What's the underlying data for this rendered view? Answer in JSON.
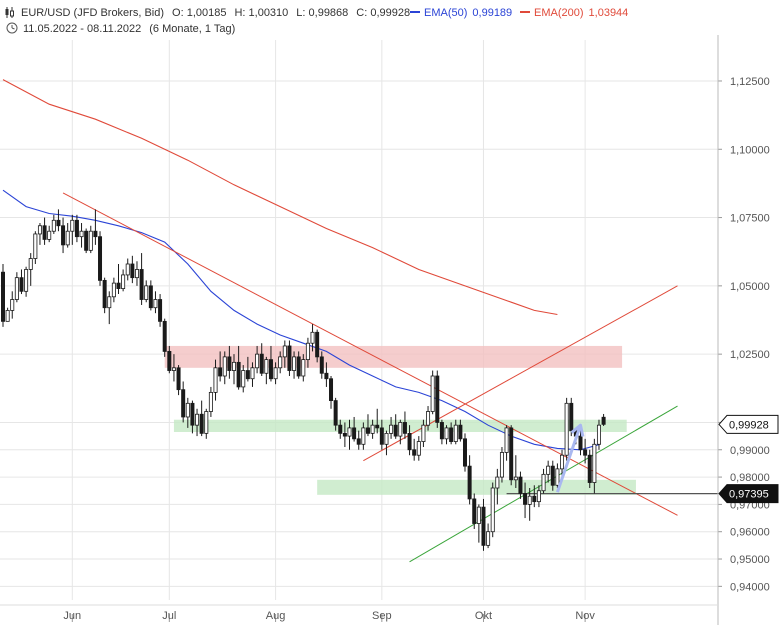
{
  "header": {
    "symbol": "EUR/USD (JFD Brokers, Bid)",
    "open": "O: 1,00185",
    "high": "H: 1,00310",
    "low": "L: 0,99868",
    "close": "C: 0,99928",
    "ema50_label": "EMA(50)",
    "ema50_value": "0,99189",
    "ema200_label": "EMA(200)",
    "ema200_value": "1,03944",
    "range": "11.05.2022 - 08.11.2022",
    "period": "(6 Monate, 1 Tag)"
  },
  "colors": {
    "up": "#1a1a1a",
    "down": "#1a1a1a",
    "ema50": "#2b44d6",
    "ema200": "#e04a3a",
    "trend_red": "#e04a3a",
    "trend_green": "#3aa53a",
    "zone_red": "#f2c0c0",
    "zone_green": "#c4e8c4",
    "arrow": "#a9b8f0",
    "grid": "#e6e6e6"
  },
  "price_tags": [
    {
      "label": "0,99928",
      "value": 0.99928,
      "style": "outline"
    },
    {
      "label": "0,97395",
      "value": 0.97395,
      "style": "filled"
    }
  ],
  "chart_data": {
    "type": "candlestick",
    "title": "",
    "ylim": [
      0.935,
      1.14
    ],
    "y_ticks": [
      0.94,
      0.95,
      0.96,
      0.97,
      0.98,
      0.99,
      1.0,
      1.025,
      1.05,
      1.075,
      1.1,
      1.125
    ],
    "y_tick_labels": [
      "0,94000",
      "0,95000",
      "0,96000",
      "0,97000",
      "0,98000",
      "0,99000",
      "1,00000",
      "1,02500",
      "1,05000",
      "1,07500",
      "1,10000",
      "1,12500"
    ],
    "x_ticks": [
      {
        "label": "Jun",
        "index": 15
      },
      {
        "label": "Jul",
        "index": 36
      },
      {
        "label": "Aug",
        "index": 59
      },
      {
        "label": "Sep",
        "index": 82
      },
      {
        "label": "Okt",
        "index": 104
      },
      {
        "label": "Nov",
        "index": 126
      }
    ],
    "candles_ohlc": [
      [
        1.055,
        1.058,
        1.035,
        1.037
      ],
      [
        1.037,
        1.042,
        1.037,
        1.041
      ],
      [
        1.041,
        1.048,
        1.038,
        1.045
      ],
      [
        1.045,
        1.055,
        1.044,
        1.053
      ],
      [
        1.053,
        1.056,
        1.047,
        1.048
      ],
      [
        1.048,
        1.057,
        1.046,
        1.056
      ],
      [
        1.056,
        1.062,
        1.05,
        1.06
      ],
      [
        1.06,
        1.07,
        1.058,
        1.069
      ],
      [
        1.069,
        1.073,
        1.065,
        1.072
      ],
      [
        1.072,
        1.075,
        1.065,
        1.067
      ],
      [
        1.067,
        1.072,
        1.066,
        1.07
      ],
      [
        1.07,
        1.076,
        1.069,
        1.074
      ],
      [
        1.074,
        1.078,
        1.07,
        1.072
      ],
      [
        1.072,
        1.075,
        1.062,
        1.065
      ],
      [
        1.065,
        1.073,
        1.064,
        1.07
      ],
      [
        1.07,
        1.076,
        1.065,
        1.074
      ],
      [
        1.074,
        1.076,
        1.066,
        1.068
      ],
      [
        1.068,
        1.073,
        1.064,
        1.07
      ],
      [
        1.07,
        1.071,
        1.062,
        1.063
      ],
      [
        1.063,
        1.072,
        1.062,
        1.07
      ],
      [
        1.07,
        1.078,
        1.065,
        1.068
      ],
      [
        1.068,
        1.07,
        1.05,
        1.052
      ],
      [
        1.052,
        1.053,
        1.04,
        1.042
      ],
      [
        1.042,
        1.048,
        1.036,
        1.046
      ],
      [
        1.046,
        1.053,
        1.044,
        1.051
      ],
      [
        1.051,
        1.058,
        1.047,
        1.049
      ],
      [
        1.049,
        1.056,
        1.048,
        1.054
      ],
      [
        1.054,
        1.06,
        1.052,
        1.058
      ],
      [
        1.058,
        1.061,
        1.051,
        1.053
      ],
      [
        1.053,
        1.059,
        1.05,
        1.056
      ],
      [
        1.056,
        1.062,
        1.043,
        1.045
      ],
      [
        1.045,
        1.052,
        1.044,
        1.05
      ],
      [
        1.05,
        1.052,
        1.041,
        1.042
      ],
      [
        1.042,
        1.048,
        1.04,
        1.045
      ],
      [
        1.045,
        1.047,
        1.035,
        1.037
      ],
      [
        1.037,
        1.038,
        1.024,
        1.026
      ],
      [
        1.026,
        1.028,
        1.018,
        1.019
      ],
      [
        1.019,
        1.025,
        1.015,
        1.02
      ],
      [
        1.02,
        1.021,
        1.01,
        1.012
      ],
      [
        1.012,
        1.015,
        1.0,
        1.002
      ],
      [
        1.002,
        1.009,
        0.998,
        1.007
      ],
      [
        1.007,
        1.008,
        0.996,
        0.999
      ],
      [
        0.999,
        1.005,
        0.995,
        1.003
      ],
      [
        1.003,
        1.008,
        0.995,
        0.996
      ],
      [
        0.996,
        1.005,
        0.994,
        1.004
      ],
      [
        1.004,
        1.013,
        1.002,
        1.011
      ],
      [
        1.011,
        1.023,
        1.008,
        1.02
      ],
      [
        1.02,
        1.026,
        1.015,
        1.017
      ],
      [
        1.017,
        1.026,
        1.014,
        1.024
      ],
      [
        1.024,
        1.028,
        1.016,
        1.019
      ],
      [
        1.019,
        1.025,
        1.014,
        1.022
      ],
      [
        1.022,
        1.028,
        1.012,
        1.013
      ],
      [
        1.013,
        1.021,
        1.011,
        1.019
      ],
      [
        1.019,
        1.024,
        1.015,
        1.016
      ],
      [
        1.016,
        1.022,
        1.013,
        1.02
      ],
      [
        1.02,
        1.028,
        1.018,
        1.025
      ],
      [
        1.025,
        1.029,
        1.017,
        1.018
      ],
      [
        1.018,
        1.024,
        1.014,
        1.023
      ],
      [
        1.023,
        1.028,
        1.015,
        1.016
      ],
      [
        1.016,
        1.022,
        1.014,
        1.02
      ],
      [
        1.02,
        1.026,
        1.018,
        1.024
      ],
      [
        1.024,
        1.03,
        1.02,
        1.028
      ],
      [
        1.028,
        1.03,
        1.017,
        1.019
      ],
      [
        1.019,
        1.026,
        1.016,
        1.024
      ],
      [
        1.024,
        1.026,
        1.016,
        1.017
      ],
      [
        1.017,
        1.025,
        1.015,
        1.023
      ],
      [
        1.023,
        1.031,
        1.02,
        1.029
      ],
      [
        1.029,
        1.036,
        1.026,
        1.033
      ],
      [
        1.033,
        1.034,
        1.022,
        1.024
      ],
      [
        1.024,
        1.026,
        1.016,
        1.018
      ],
      [
        1.018,
        1.022,
        1.013,
        1.016
      ],
      [
        1.016,
        1.017,
        1.005,
        1.008
      ],
      [
        1.008,
        1.009,
        0.997,
        0.999
      ],
      [
        0.999,
        1.001,
        0.994,
        0.996
      ],
      [
        0.996,
        1.0,
        0.991,
        0.995
      ],
      [
        0.995,
        1.001,
        0.99,
        0.998
      ],
      [
        0.998,
        1.002,
        0.993,
        0.994
      ],
      [
        0.994,
        0.997,
        0.99,
        0.992
      ],
      [
        0.992,
        1.0,
        0.99,
        0.998
      ],
      [
        0.998,
        1.003,
        0.995,
        0.996
      ],
      [
        0.996,
        1.001,
        0.994,
        0.999
      ],
      [
        0.999,
        1.005,
        0.996,
        0.998
      ],
      [
        0.998,
        1.001,
        0.99,
        0.992
      ],
      [
        0.992,
        0.997,
        0.988,
        0.996
      ],
      [
        0.996,
        1.002,
        0.994,
        0.999
      ],
      [
        0.999,
        1.003,
        0.994,
        0.995
      ],
      [
        0.995,
        1.001,
        0.992,
        1.0
      ],
      [
        1.0,
        1.004,
        0.994,
        0.996
      ],
      [
        0.996,
        0.999,
        0.988,
        0.99
      ],
      [
        0.99,
        0.994,
        0.986,
        0.988
      ],
      [
        0.988,
        0.995,
        0.986,
        0.993
      ],
      [
        0.993,
        1.001,
        0.991,
        0.999
      ],
      [
        0.999,
        1.006,
        0.997,
        1.004
      ],
      [
        1.004,
        1.019,
        1.003,
        1.017
      ],
      [
        1.017,
        1.019,
        0.998,
        1.0
      ],
      [
        1.0,
        1.001,
        0.992,
        0.994
      ],
      [
        0.994,
        0.999,
        0.992,
        0.998
      ],
      [
        0.998,
        1.0,
        0.992,
        0.993
      ],
      [
        0.993,
        1.001,
        0.992,
        0.999
      ],
      [
        0.999,
        1.001,
        0.993,
        0.994
      ],
      [
        0.994,
        0.996,
        0.982,
        0.984
      ],
      [
        0.984,
        0.988,
        0.97,
        0.972
      ],
      [
        0.972,
        0.974,
        0.961,
        0.963
      ],
      [
        0.963,
        0.97,
        0.956,
        0.969
      ],
      [
        0.969,
        0.972,
        0.953,
        0.955
      ],
      [
        0.955,
        0.963,
        0.954,
        0.96
      ],
      [
        0.96,
        0.978,
        0.958,
        0.976
      ],
      [
        0.976,
        0.983,
        0.97,
        0.98
      ],
      [
        0.98,
        0.991,
        0.978,
        0.989
      ],
      [
        0.989,
        0.999,
        0.986,
        0.998
      ],
      [
        0.998,
        0.999,
        0.977,
        0.979
      ],
      [
        0.979,
        0.988,
        0.976,
        0.98
      ],
      [
        0.98,
        0.982,
        0.972,
        0.974
      ],
      [
        0.974,
        0.978,
        0.965,
        0.97
      ],
      [
        0.97,
        0.976,
        0.964,
        0.973
      ],
      [
        0.973,
        0.977,
        0.969,
        0.971
      ],
      [
        0.971,
        0.977,
        0.969,
        0.975
      ],
      [
        0.975,
        0.983,
        0.974,
        0.981
      ],
      [
        0.981,
        0.986,
        0.978,
        0.984
      ],
      [
        0.984,
        0.986,
        0.975,
        0.977
      ],
      [
        0.977,
        0.985,
        0.976,
        0.983
      ],
      [
        0.983,
        0.99,
        0.98,
        0.988
      ],
      [
        0.988,
        1.009,
        0.986,
        1.007
      ],
      [
        1.007,
        1.009,
        0.995,
        0.997
      ],
      [
        0.997,
        0.998,
        0.992,
        0.995
      ],
      [
        0.995,
        0.998,
        0.988,
        0.99
      ],
      [
        0.99,
        0.994,
        0.985,
        0.988
      ],
      [
        0.988,
        0.99,
        0.976,
        0.978
      ],
      [
        0.978,
        0.994,
        0.974,
        0.992
      ],
      [
        0.992,
        1.001,
        0.99,
        0.999
      ],
      [
        1.0019,
        1.0031,
        0.9987,
        0.9993
      ]
    ],
    "ema50": [
      [
        0,
        1.085
      ],
      [
        5,
        1.079
      ],
      [
        10,
        1.0765
      ],
      [
        15,
        1.0755
      ],
      [
        20,
        1.074
      ],
      [
        25,
        1.072
      ],
      [
        30,
        1.0695
      ],
      [
        35,
        1.066
      ],
      [
        40,
        1.058
      ],
      [
        45,
        1.048
      ],
      [
        50,
        1.041
      ],
      [
        55,
        1.036
      ],
      [
        60,
        1.032
      ],
      [
        65,
        1.029
      ],
      [
        70,
        1.026
      ],
      [
        75,
        1.021
      ],
      [
        80,
        1.017
      ],
      [
        85,
        1.013
      ],
      [
        90,
        1.011
      ],
      [
        95,
        1.008
      ],
      [
        100,
        1.004
      ],
      [
        105,
        0.999
      ],
      [
        110,
        0.995
      ],
      [
        115,
        0.992
      ],
      [
        120,
        0.9905
      ],
      [
        125,
        0.99
      ],
      [
        129,
        0.9919
      ]
    ],
    "ema200": [
      [
        0,
        1.1255
      ],
      [
        10,
        1.1165
      ],
      [
        20,
        1.111
      ],
      [
        30,
        1.104
      ],
      [
        40,
        1.096
      ],
      [
        50,
        1.087
      ],
      [
        60,
        1.079
      ],
      [
        70,
        1.071
      ],
      [
        80,
        1.064
      ],
      [
        90,
        1.056
      ],
      [
        100,
        1.05
      ],
      [
        110,
        1.044
      ],
      [
        115,
        1.041
      ],
      [
        120,
        1.0395
      ]
    ],
    "trendlines": [
      {
        "color": "red",
        "from": [
          13,
          1.084
        ],
        "to": [
          146,
          0.966
        ]
      },
      {
        "color": "red",
        "from": [
          78,
          0.986
        ],
        "to": [
          146,
          1.05
        ]
      },
      {
        "color": "green",
        "from": [
          88,
          0.949
        ],
        "to": [
          146,
          1.006
        ]
      }
    ],
    "zones": [
      {
        "color": "red",
        "x": [
          35,
          134
        ],
        "y": [
          1.02,
          1.028
        ]
      },
      {
        "color": "green",
        "x": [
          37,
          135
        ],
        "y": [
          0.9965,
          1.001
        ]
      },
      {
        "color": "green",
        "x": [
          68,
          137
        ],
        "y": [
          0.9735,
          0.979
        ]
      }
    ],
    "arrow": {
      "from": [
        120,
        0.9745
      ],
      "to": [
        125,
        0.999
      ]
    },
    "support_line": {
      "value": 0.97395,
      "from_index": 109
    }
  }
}
